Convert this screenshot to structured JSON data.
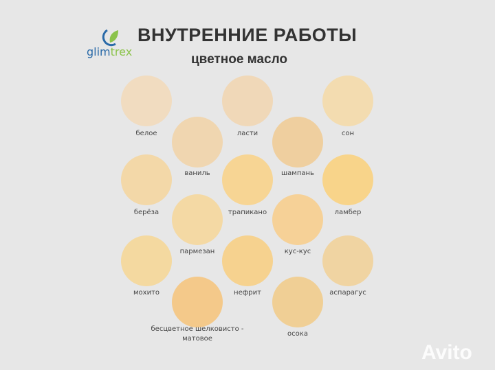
{
  "logo": {
    "brand_a": "glim",
    "brand_b": "trex"
  },
  "title": "ВНУТРЕННИЕ РАБОТЫ",
  "subtitle": "цветное масло",
  "watermark": "Avito",
  "swatches": [
    {
      "label": "белое",
      "color": "#f1dcc0"
    },
    {
      "label": "ласти",
      "color": "#f0d8b8"
    },
    {
      "label": "сон",
      "color": "#f3dcb0"
    },
    {
      "label": "ваниль",
      "color": "#f0d6b0"
    },
    {
      "label": "шампань",
      "color": "#efcf9f"
    },
    {
      "label": "берёза",
      "color": "#f3d8a8"
    },
    {
      "label": "трапикано",
      "color": "#f7d594"
    },
    {
      "label": "ламбер",
      "color": "#f8d48a"
    },
    {
      "label": "пармезан",
      "color": "#f4d9a4"
    },
    {
      "label": "кус-кус",
      "color": "#f6d197"
    },
    {
      "label": "мохито",
      "color": "#f4d9a0"
    },
    {
      "label": "нефрит",
      "color": "#f6d28f"
    },
    {
      "label": "аспарагус",
      "color": "#f0d4a2"
    },
    {
      "label": "бесцветное шелковисто - матовое",
      "color": "#f4c98a"
    },
    {
      "label": "осока",
      "color": "#f0cf95"
    }
  ]
}
